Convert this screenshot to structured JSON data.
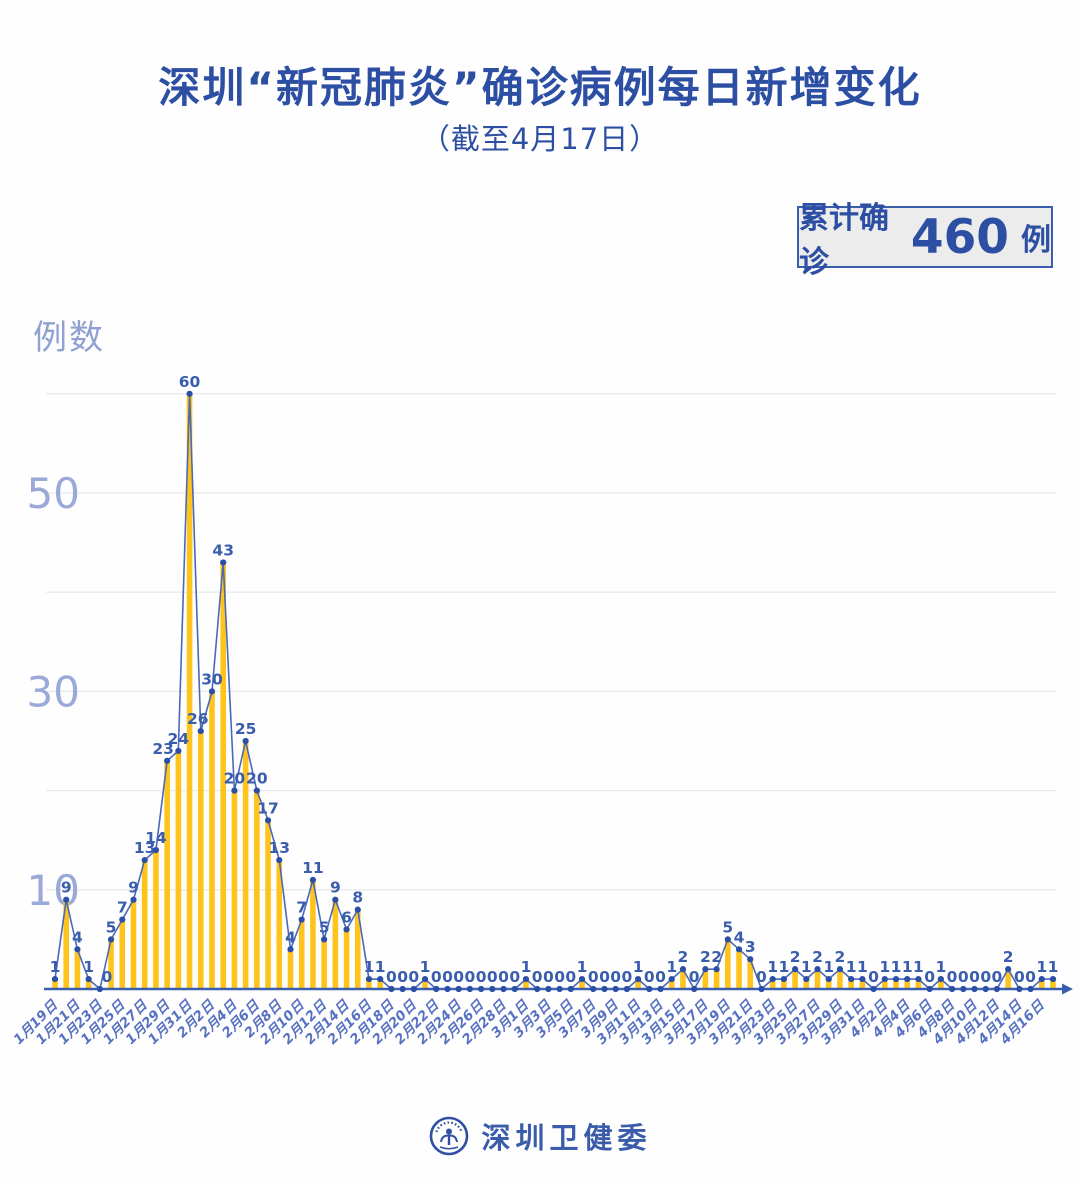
{
  "header": {
    "title": "深圳“新冠肺炎”确诊病例每日新增变化",
    "subtitle": "（截至4月17日）"
  },
  "badge": {
    "prefix": "累计确诊",
    "value": "460",
    "suffix": "例"
  },
  "footer": {
    "org": "深圳卫健委"
  },
  "chart_data": {
    "type": "bar+line",
    "title": "深圳“新冠肺炎”确诊病例每日新增变化",
    "subtitle": "（截至4月17日）",
    "ylabel": "例数",
    "ylim": [
      0,
      62
    ],
    "gridlines": [
      10,
      20,
      30,
      40,
      50,
      60
    ],
    "y_ticks_labeled": [
      10,
      30,
      50
    ],
    "legend": "none",
    "x_label_every": 2,
    "x_tick_labels": [
      "1月19日",
      "1月21日",
      "1月23日",
      "1月25日",
      "1月27日",
      "1月29日",
      "1月31日",
      "2月2日",
      "2月4日",
      "2月6日",
      "2月8日",
      "2月10日",
      "2月12日",
      "2月14日",
      "2月16日",
      "2月18日",
      "2月20日",
      "2月22日",
      "2月24日",
      "2月26日",
      "2月28日",
      "3月1日",
      "3月3日",
      "3月5日",
      "3月7日",
      "3月9日",
      "3月11日",
      "3月13日",
      "3月15日",
      "3月17日",
      "3月19日",
      "3月21日",
      "3月23日",
      "3月25日",
      "3月27日",
      "3月29日",
      "3月31日",
      "4月2日",
      "4月4日",
      "4月6日",
      "4月8日",
      "4月10日",
      "4月12日",
      "4月14日",
      "4月16日"
    ],
    "x_range_note": "daily values from 1月19日 to 4月17日",
    "values": [
      1,
      9,
      4,
      1,
      0,
      5,
      7,
      9,
      13,
      14,
      23,
      24,
      60,
      26,
      30,
      43,
      20,
      25,
      20,
      17,
      13,
      4,
      7,
      11,
      5,
      9,
      6,
      8,
      1,
      1,
      0,
      0,
      0,
      1,
      0,
      0,
      0,
      0,
      0,
      0,
      0,
      0,
      1,
      0,
      0,
      0,
      0,
      1,
      0,
      0,
      0,
      0,
      1,
      0,
      0,
      1,
      2,
      0,
      2,
      2,
      5,
      4,
      3,
      0,
      1,
      1,
      2,
      1,
      2,
      1,
      2,
      1,
      1,
      0,
      1,
      1,
      1,
      1,
      0,
      1,
      0,
      0,
      0,
      0,
      0,
      2,
      0,
      0,
      1,
      1
    ],
    "total": 460,
    "colors": {
      "bar": "#FFC41C",
      "line": "#4A69B8",
      "dot": "#2B4FA5",
      "value_label": "#3A5DAD",
      "axis": "#3A5DAE",
      "x_label": "#5671C1",
      "y_label": "#9AA9D8",
      "grid": "#E9E9ED",
      "title": "#2D4FA3"
    }
  }
}
